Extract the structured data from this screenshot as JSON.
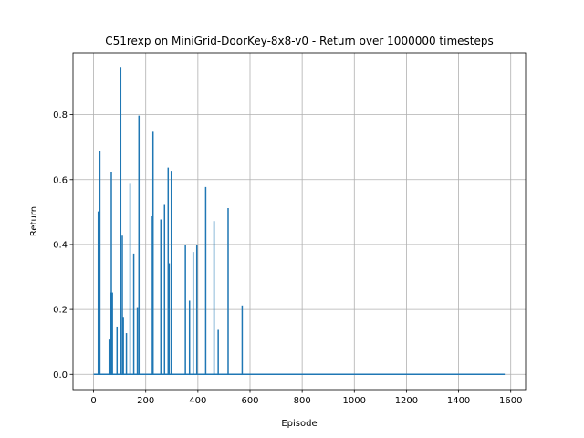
{
  "chart_data": {
    "type": "line",
    "title": "C51rexp on MiniGrid-DoorKey-8x8-v0 - Return over 1000000 timesteps",
    "xlabel": "Episode",
    "ylabel": "Return",
    "xlim": [
      -79,
      1657
    ],
    "ylim": [
      -0.047,
      0.99
    ],
    "xticks": [
      0,
      200,
      400,
      600,
      800,
      1000,
      1200,
      1400,
      1600
    ],
    "yticks": [
      0.0,
      0.2,
      0.4,
      0.6,
      0.8
    ],
    "xtick_labels": [
      "0",
      "200",
      "400",
      "600",
      "800",
      "1000",
      "1200",
      "1400",
      "1600"
    ],
    "ytick_labels": [
      "0.0",
      "0.2",
      "0.4",
      "0.6",
      "0.8"
    ],
    "grid": true,
    "line_color": "#1f77b4",
    "x_end": 1577,
    "spikes": [
      {
        "x": 18,
        "y": 0.5
      },
      {
        "x": 24,
        "y": 0.685
      },
      {
        "x": 60,
        "y": 0.105
      },
      {
        "x": 64,
        "y": 0.25
      },
      {
        "x": 68,
        "y": 0.62
      },
      {
        "x": 72,
        "y": 0.25
      },
      {
        "x": 90,
        "y": 0.145
      },
      {
        "x": 104,
        "y": 0.945
      },
      {
        "x": 110,
        "y": 0.425
      },
      {
        "x": 114,
        "y": 0.175
      },
      {
        "x": 126,
        "y": 0.125
      },
      {
        "x": 140,
        "y": 0.585
      },
      {
        "x": 154,
        "y": 0.37
      },
      {
        "x": 168,
        "y": 0.205
      },
      {
        "x": 174,
        "y": 0.795
      },
      {
        "x": 222,
        "y": 0.485
      },
      {
        "x": 228,
        "y": 0.745
      },
      {
        "x": 258,
        "y": 0.475
      },
      {
        "x": 272,
        "y": 0.52
      },
      {
        "x": 286,
        "y": 0.635
      },
      {
        "x": 290,
        "y": 0.34
      },
      {
        "x": 298,
        "y": 0.625
      },
      {
        "x": 352,
        "y": 0.395
      },
      {
        "x": 368,
        "y": 0.225
      },
      {
        "x": 382,
        "y": 0.375
      },
      {
        "x": 396,
        "y": 0.395
      },
      {
        "x": 430,
        "y": 0.575
      },
      {
        "x": 462,
        "y": 0.47
      },
      {
        "x": 478,
        "y": 0.135
      },
      {
        "x": 516,
        "y": 0.51
      },
      {
        "x": 570,
        "y": 0.21
      }
    ]
  }
}
